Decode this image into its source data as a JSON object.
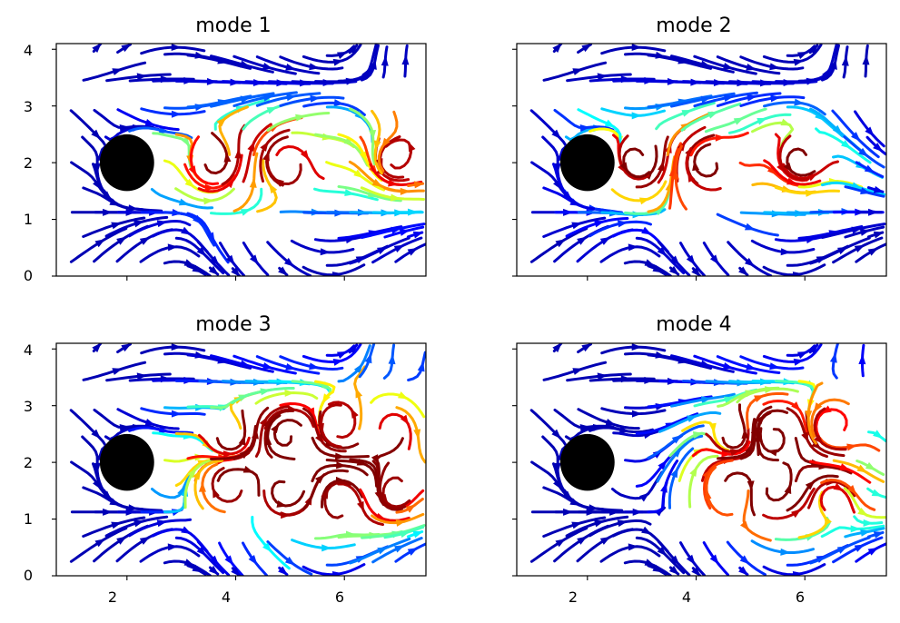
{
  "chart_data": [
    {
      "type": "streamplot",
      "title": "mode 1",
      "xlabel": "",
      "ylabel": "",
      "xlim": [
        0.7,
        7.5
      ],
      "ylim": [
        0,
        4.1
      ],
      "xticks": [
        "2",
        "4",
        "6"
      ],
      "yticks": [
        "0",
        "1",
        "2",
        "3",
        "4"
      ],
      "show_xticklabels": false,
      "show_yticklabels": true,
      "obstacle": {
        "shape": "circle",
        "center": [
          2,
          2
        ],
        "radius": 0.5,
        "color": "#000000"
      },
      "colormap": "jet",
      "vortex_centers": [
        [
          3.6,
          2.0,
          1
        ],
        [
          4.9,
          2.05,
          -1
        ],
        [
          6.9,
          2.0,
          1
        ]
      ],
      "vortex_strength": 1.15
    },
    {
      "type": "streamplot",
      "title": "mode 2",
      "xlabel": "",
      "ylabel": "",
      "xlim": [
        0.7,
        7.5
      ],
      "ylim": [
        0,
        4.1
      ],
      "xticks": [
        "2",
        "4",
        "6"
      ],
      "yticks": [
        "0",
        "1",
        "2",
        "3",
        "4"
      ],
      "show_xticklabels": false,
      "show_yticklabels": false,
      "obstacle": {
        "shape": "circle",
        "center": [
          2,
          2
        ],
        "radius": 0.5,
        "color": "#000000"
      },
      "colormap": "jet",
      "vortex_centers": [
        [
          2.9,
          2.0,
          1
        ],
        [
          4.2,
          2.0,
          -1
        ],
        [
          5.9,
          2.0,
          1
        ]
      ],
      "vortex_strength": 1.15
    },
    {
      "type": "streamplot",
      "title": "mode 3",
      "xlabel": "",
      "ylabel": "",
      "xlim": [
        0.7,
        7.5
      ],
      "ylim": [
        0,
        4.1
      ],
      "xticks": [
        "2",
        "4",
        "6"
      ],
      "yticks": [
        "0",
        "1",
        "2",
        "3",
        "4"
      ],
      "show_xticklabels": true,
      "show_yticklabels": true,
      "obstacle": {
        "shape": "circle",
        "center": [
          2,
          2
        ],
        "radius": 0.5,
        "color": "#000000"
      },
      "colormap": "jet",
      "vortex_centers": [
        [
          3.9,
          2.4,
          1
        ],
        [
          3.9,
          1.6,
          -1
        ],
        [
          4.9,
          2.5,
          -1
        ],
        [
          4.9,
          1.5,
          1
        ],
        [
          5.9,
          2.6,
          1
        ],
        [
          5.9,
          1.4,
          -1
        ],
        [
          6.9,
          2.6,
          -1
        ],
        [
          6.9,
          1.4,
          1
        ]
      ],
      "vortex_strength": 0.8
    },
    {
      "type": "streamplot",
      "title": "mode 4",
      "xlabel": "",
      "ylabel": "",
      "xlim": [
        0.7,
        7.5
      ],
      "ylim": [
        0,
        4.1
      ],
      "xticks": [
        "2",
        "4",
        "6"
      ],
      "yticks": [
        "0",
        "1",
        "2",
        "3",
        "4"
      ],
      "show_xticklabels": true,
      "show_yticklabels": false,
      "obstacle": {
        "shape": "circle",
        "center": [
          2,
          2
        ],
        "radius": 0.5,
        "color": "#000000"
      },
      "colormap": "jet",
      "vortex_centers": [
        [
          4.7,
          2.4,
          1
        ],
        [
          4.7,
          1.6,
          -1
        ],
        [
          5.4,
          2.5,
          -1
        ],
        [
          5.4,
          1.5,
          1
        ],
        [
          6.5,
          2.6,
          1
        ],
        [
          6.5,
          1.4,
          -1
        ]
      ],
      "vortex_strength": 0.8
    }
  ]
}
